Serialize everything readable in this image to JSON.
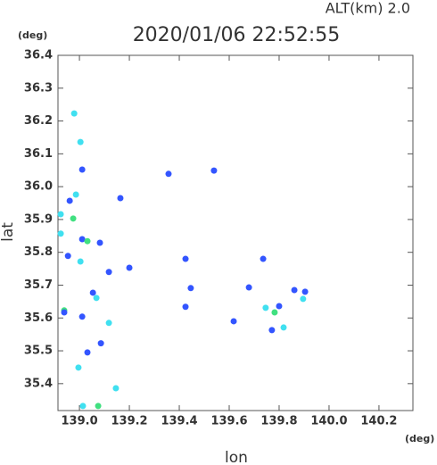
{
  "chart_data": {
    "type": "scatter",
    "title": "2020/01/06 22:52:55",
    "subtitle": "ALT(km) 2.0",
    "x_label": "lon",
    "y_label": "lat",
    "x_unit": "(deg)",
    "y_unit": "(deg)",
    "xlim": [
      138.914,
      140.336
    ],
    "ylim": [
      35.318,
      36.4
    ],
    "xticks": [
      {
        "value": 139,
        "label": "139.0"
      },
      139.2,
      139.4,
      139.6,
      139.8,
      {
        "value": 140,
        "label": "140.0"
      },
      140.2
    ],
    "yticks": [
      35.4,
      35.5,
      35.6,
      35.7,
      35.8,
      35.9,
      {
        "value": 36,
        "label": "36.0"
      },
      36.1,
      36.2,
      36.3,
      36.4
    ],
    "x": [
      138.979,
      139.004,
      139.011,
      138.961,
      138.986,
      138.925,
      138.975,
      138.925,
      139.011,
      139.032,
      138.954,
      139.004,
      139.082,
      139.118,
      139.054,
      139.068,
      138.939,
      138.939,
      139.011,
      139.118,
      139.032,
      138.996,
      139.146,
      139.014,
      139.075,
      139.086,
      139.446,
      139.736,
      139.771,
      139.861,
      139.904,
      139.896,
      139.8,
      139.746,
      139.679,
      139.818,
      139.782,
      139.539,
      139.357,
      139.425,
      139.164,
      139.425,
      139.618,
      139.2
    ],
    "values": [
      36.223,
      36.136,
      36.052,
      35.957,
      35.976,
      35.916,
      35.903,
      35.857,
      35.84,
      35.834,
      35.789,
      35.772,
      35.829,
      35.74,
      35.677,
      35.661,
      35.623,
      35.617,
      35.604,
      35.585,
      35.495,
      35.449,
      35.386,
      35.332,
      35.332,
      35.523,
      35.691,
      35.78,
      35.563,
      35.685,
      35.68,
      35.658,
      35.636,
      35.631,
      35.693,
      35.571,
      35.617,
      36.049,
      36.039,
      35.78,
      35.965,
      35.634,
      35.59,
      35.753
    ],
    "colors": [
      "#40e0f0",
      "#40e0f0",
      "#3355ff",
      "#3355ff",
      "#40e0f0",
      "#40e0f0",
      "#40e080",
      "#40e0f0",
      "#3355ff",
      "#40e080",
      "#3355ff",
      "#40e0f0",
      "#3355ff",
      "#3355ff",
      "#3355ff",
      "#40e0f0",
      "#40e080",
      "#3355ff",
      "#3355ff",
      "#40e0f0",
      "#3355ff",
      "#40e0f0",
      "#40e0f0",
      "#40e0f0",
      "#40e080",
      "#3355ff",
      "#3355ff",
      "#3355ff",
      "#3355ff",
      "#3355ff",
      "#3355ff",
      "#40e0f0",
      "#3355ff",
      "#40e0f0",
      "#3355ff",
      "#40e0f0",
      "#40e080",
      "#3355ff",
      "#3355ff",
      "#3355ff",
      "#3355ff",
      "#3355ff",
      "#3355ff",
      "#3355ff"
    ]
  }
}
